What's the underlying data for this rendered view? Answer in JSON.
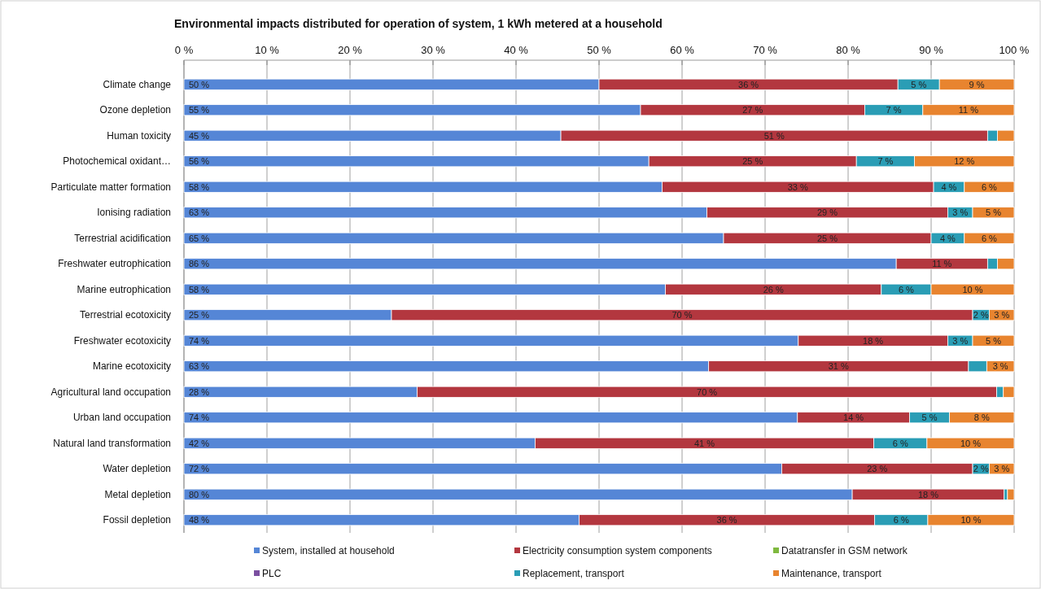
{
  "chart_data": {
    "type": "bar",
    "orientation": "horizontal",
    "stacked": true,
    "title": "Environmental impacts distributed for operation of system, 1 kWh metered at a household",
    "categories": [
      "Climate change",
      "Ozone depletion",
      "Human toxicity",
      "Photochemical oxidant…",
      "Particulate matter formation",
      "Ionising radiation",
      "Terrestrial acidification",
      "Freshwater eutrophication",
      "Marine eutrophication",
      "Terrestrial ecotoxicity",
      "Freshwater ecotoxicity",
      "Marine ecotoxicity",
      "Agricultural land occupation",
      "Urban land occupation",
      "Natural land transformation",
      "Water depletion",
      "Metal depletion",
      "Fossil depletion"
    ],
    "series": [
      {
        "name": "System, installed at household",
        "color": "#5586d6",
        "values": [
          50,
          55,
          45.4,
          56,
          57.6,
          63,
          65,
          85.8,
          58,
          25,
          74,
          63.2,
          28.1,
          73.9,
          42.3,
          72,
          80.5,
          47.6
        ],
        "value_labels": [
          "50 %",
          "55 %",
          "45 %",
          "56 %",
          "58 %",
          "63 %",
          "65 %",
          "86 %",
          "58 %",
          "25 %",
          "74 %",
          "63 %",
          "28 %",
          "74 %",
          "42 %",
          "72 %",
          "80 %",
          "48 %"
        ]
      },
      {
        "name": "Electricity consumption system components",
        "color": "#b3373f",
        "values": [
          36,
          27,
          51.4,
          25,
          32.7,
          29,
          25,
          11,
          26,
          70,
          18,
          31.3,
          69.8,
          13.5,
          40.8,
          23,
          18.3,
          35.6
        ],
        "value_labels": [
          "36 %",
          "27 %",
          "51 %",
          "25 %",
          "33 %",
          "29 %",
          "25 %",
          "11 %",
          "26 %",
          "70 %",
          "18 %",
          "31 %",
          "70 %",
          "14 %",
          "41 %",
          "23 %",
          "18 %",
          "36 %"
        ]
      },
      {
        "name": "Datatransfer in GSM network",
        "color": "#7fb93f",
        "values": [
          0,
          0,
          0,
          0,
          0,
          0,
          0,
          0,
          0,
          0,
          0,
          0,
          0,
          0,
          0,
          0,
          0,
          0
        ]
      },
      {
        "name": "PLC",
        "color": "#7b4fa0",
        "values": [
          0,
          0,
          0,
          0,
          0,
          0,
          0,
          0,
          0,
          0,
          0,
          0,
          0,
          0,
          0,
          0,
          0,
          0
        ]
      },
      {
        "name": "Replacement, transport",
        "color": "#2a9db5",
        "values": [
          5,
          7,
          1.2,
          7,
          3.7,
          3,
          4,
          1.2,
          6,
          2,
          3,
          2.2,
          0.8,
          4.8,
          6.4,
          2,
          0.4,
          6.4
        ],
        "value_labels": [
          "5 %",
          "7 %",
          null,
          "7 %",
          "4 %",
          "3 %",
          "4 %",
          null,
          "6 %",
          "2 %",
          "3 %",
          null,
          null,
          "5 %",
          "6 %",
          "2 %",
          null,
          "6 %"
        ]
      },
      {
        "name": "Maintenance, transport",
        "color": "#e8842f",
        "values": [
          9,
          11,
          2,
          12,
          6,
          5,
          6,
          2,
          10,
          3,
          5,
          3.3,
          1.3,
          7.8,
          10.5,
          3,
          0.8,
          10.4
        ],
        "value_labels": [
          "9 %",
          "11 %",
          null,
          "12 %",
          "6 %",
          "5 %",
          "6 %",
          null,
          "10 %",
          "3 %",
          "5 %",
          "3 %",
          null,
          "8 %",
          "10 %",
          "3 %",
          null,
          "10 %"
        ]
      }
    ],
    "xlim": [
      0,
      100
    ],
    "xticks": [
      {
        "value": 0,
        "label": "0 %"
      },
      {
        "value": 10,
        "label": "10 %"
      },
      {
        "value": 20,
        "label": "20 %"
      },
      {
        "value": 30,
        "label": "30 %"
      },
      {
        "value": 40,
        "label": "40 %"
      },
      {
        "value": 50,
        "label": "50 %"
      },
      {
        "value": 60,
        "label": "60 %"
      },
      {
        "value": 70,
        "label": "70 %"
      },
      {
        "value": 80,
        "label": "80 %"
      },
      {
        "value": 90,
        "label": "90 %"
      },
      {
        "value": 100,
        "label": "100 %"
      }
    ],
    "grid": "x",
    "legend": "bottom"
  }
}
